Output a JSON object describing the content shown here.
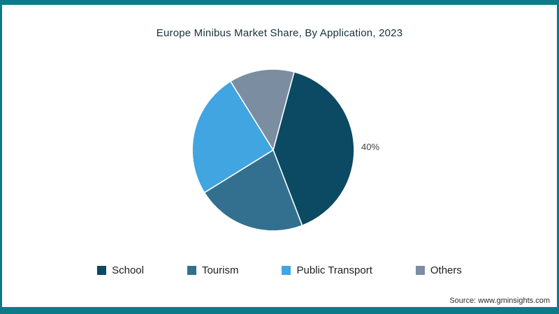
{
  "page": {
    "frame_color": "#0d7a89",
    "source_text": "Source: www.gminsights.com"
  },
  "chart_data": {
    "type": "pie",
    "title": "Europe Minibus Market Share, By Application, 2023",
    "categories": [
      "School",
      "Tourism",
      "Public Transport",
      "Others"
    ],
    "values": [
      40,
      22,
      25,
      13
    ],
    "colors": [
      "#0c4a63",
      "#33708f",
      "#41a5e1",
      "#7b8da1"
    ],
    "start_angle_deg": 15,
    "data_labels": [
      {
        "category": "School",
        "text": "40%"
      }
    ],
    "legend_position": "bottom",
    "grid": false
  }
}
